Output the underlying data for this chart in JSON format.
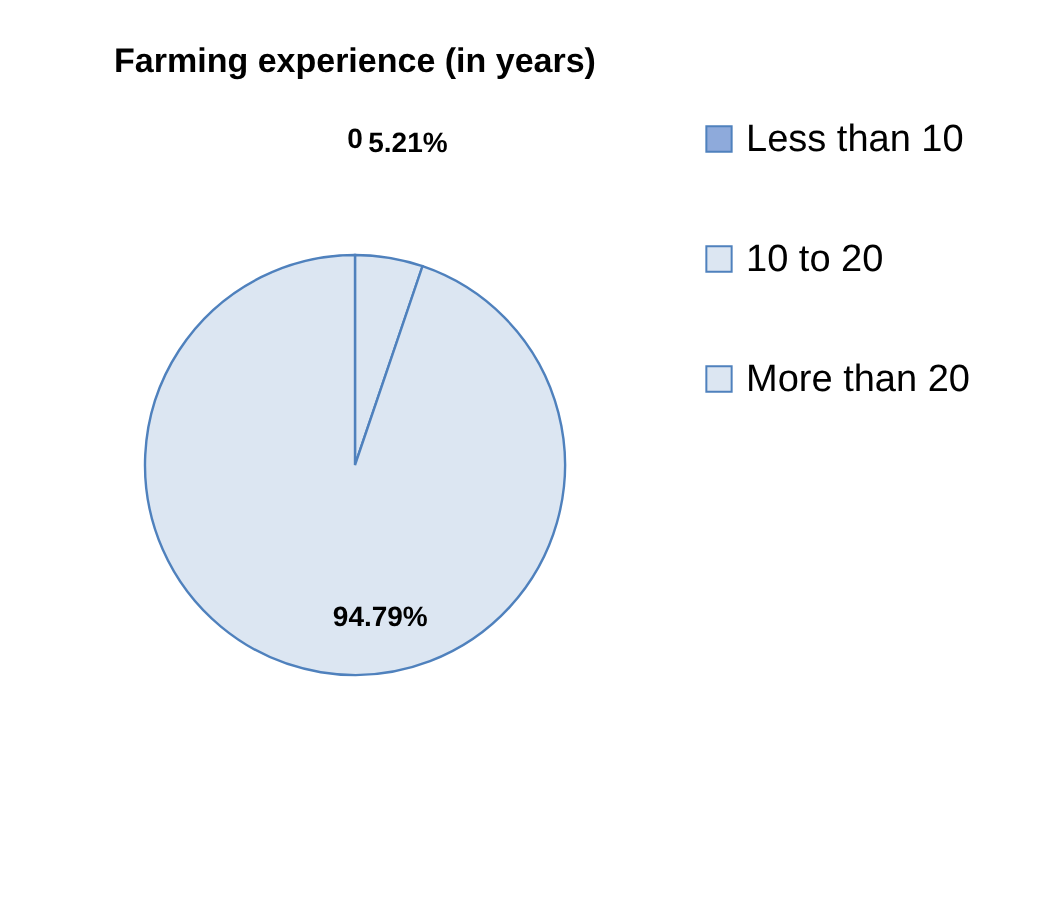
{
  "chart_data": {
    "type": "pie",
    "title": "Farming experience (in years)",
    "categories": [
      "Less than 10",
      "10 to 20",
      "More than 20"
    ],
    "values": [
      0,
      5.21,
      94.79
    ],
    "value_labels": [
      "0",
      "5.21%",
      "94.79%"
    ],
    "colors": [
      "#8eaadb",
      "#dce6f2",
      "#dce6f2"
    ],
    "legend": "right"
  }
}
